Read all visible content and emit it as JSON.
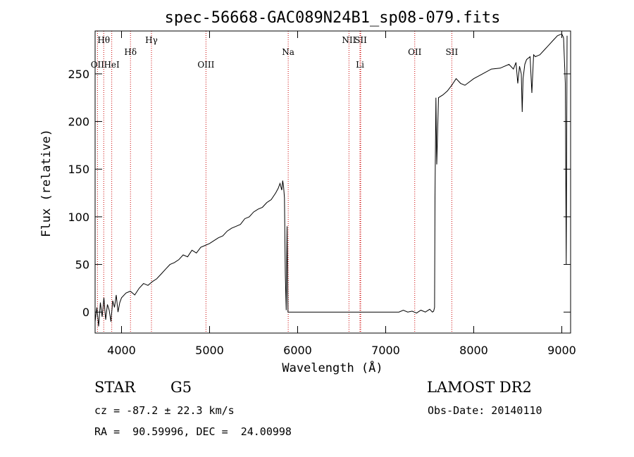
{
  "chart_data": {
    "type": "line",
    "title": "spec-56668-GAC089N24B1_sp08-079.fits",
    "xlabel": "Wavelength (Å)",
    "ylabel": "Flux (relative)",
    "xlim": [
      3700,
      9100
    ],
    "ylim": [
      -22,
      295
    ],
    "xticks": [
      4000,
      5000,
      6000,
      7000,
      8000,
      9000
    ],
    "yticks": [
      0,
      50,
      100,
      150,
      200,
      250
    ],
    "grid": false,
    "series": [
      {
        "x": [
          3700,
          3720,
          3740,
          3760,
          3780,
          3800,
          3820,
          3840,
          3860,
          3880,
          3900,
          3920,
          3940,
          3960,
          3980,
          4000,
          4050,
          4100,
          4150,
          4200,
          4250,
          4300,
          4350,
          4400,
          4450,
          4500,
          4550,
          4600,
          4650,
          4700,
          4750,
          4800,
          4850,
          4900,
          4950,
          5000,
          5050,
          5100,
          5150,
          5200,
          5250,
          5300,
          5350,
          5400,
          5450,
          5500,
          5550,
          5600,
          5650,
          5700,
          5750,
          5780,
          5800,
          5820,
          5830,
          5840,
          5850,
          5860,
          5870,
          5880,
          5890,
          5900,
          6000,
          6500,
          7000,
          7150,
          7200,
          7250,
          7300,
          7350,
          7400,
          7450,
          7500,
          7530,
          7545,
          7555,
          7560,
          7570,
          7580,
          7600,
          7650,
          7700,
          7750,
          7800,
          7850,
          7900,
          8000,
          8100,
          8200,
          8300,
          8400,
          8450,
          8480,
          8500,
          8520,
          8540,
          8550,
          8560,
          8580,
          8600,
          8640,
          8660,
          8680,
          8700,
          8750,
          8800,
          8850,
          8900,
          8950,
          9000,
          9020,
          9040,
          9050,
          9060
        ],
        "y": [
          -10,
          5,
          -15,
          10,
          -5,
          15,
          -8,
          8,
          2,
          -10,
          12,
          5,
          18,
          0,
          10,
          15,
          20,
          22,
          18,
          25,
          30,
          28,
          32,
          35,
          40,
          45,
          50,
          52,
          55,
          60,
          58,
          65,
          62,
          68,
          70,
          72,
          75,
          78,
          80,
          85,
          88,
          90,
          92,
          98,
          100,
          105,
          108,
          110,
          115,
          118,
          125,
          130,
          135,
          128,
          138,
          132,
          120,
          40,
          2,
          90,
          0,
          0,
          0,
          0,
          0,
          0,
          2,
          0,
          1,
          -1,
          2,
          0,
          3,
          0,
          1,
          5,
          120,
          225,
          155,
          225,
          228,
          232,
          238,
          245,
          240,
          238,
          245,
          250,
          255,
          256,
          260,
          255,
          262,
          240,
          258,
          250,
          210,
          245,
          260,
          265,
          268,
          230,
          270,
          268,
          270,
          275,
          280,
          285,
          290,
          292,
          288,
          240,
          50,
          290
        ]
      }
    ],
    "lines": [
      {
        "x": 3798,
        "label": "Hθ",
        "row": 1
      },
      {
        "x": 3727,
        "label": "OII",
        "row": 3
      },
      {
        "x": 3889,
        "label": "HeI",
        "row": 3
      },
      {
        "x": 4102,
        "label": "Hδ",
        "row": 2
      },
      {
        "x": 4340,
        "label": "Hγ",
        "row": 1
      },
      {
        "x": 4959,
        "label": "OIII",
        "row": 3
      },
      {
        "x": 5893,
        "label": "Na",
        "row": 2
      },
      {
        "x": 6583,
        "label": "NII",
        "row": 1
      },
      {
        "x": 6716,
        "label": "SII",
        "row": 1
      },
      {
        "x": 6708,
        "label": "Li",
        "row": 3
      },
      {
        "x": 7330,
        "label": "OII",
        "row": 2
      },
      {
        "x": 7751,
        "label": "SII",
        "row": 2
      }
    ]
  },
  "footer": {
    "class_label": "STAR",
    "subclass": "G5",
    "survey": "LAMOST DR2",
    "cz": "cz = -87.2 ± 22.3 km/s",
    "obs_date": "Obs-Date: 20140110",
    "coords": "RA =  90.59996, DEC =  24.00998"
  }
}
